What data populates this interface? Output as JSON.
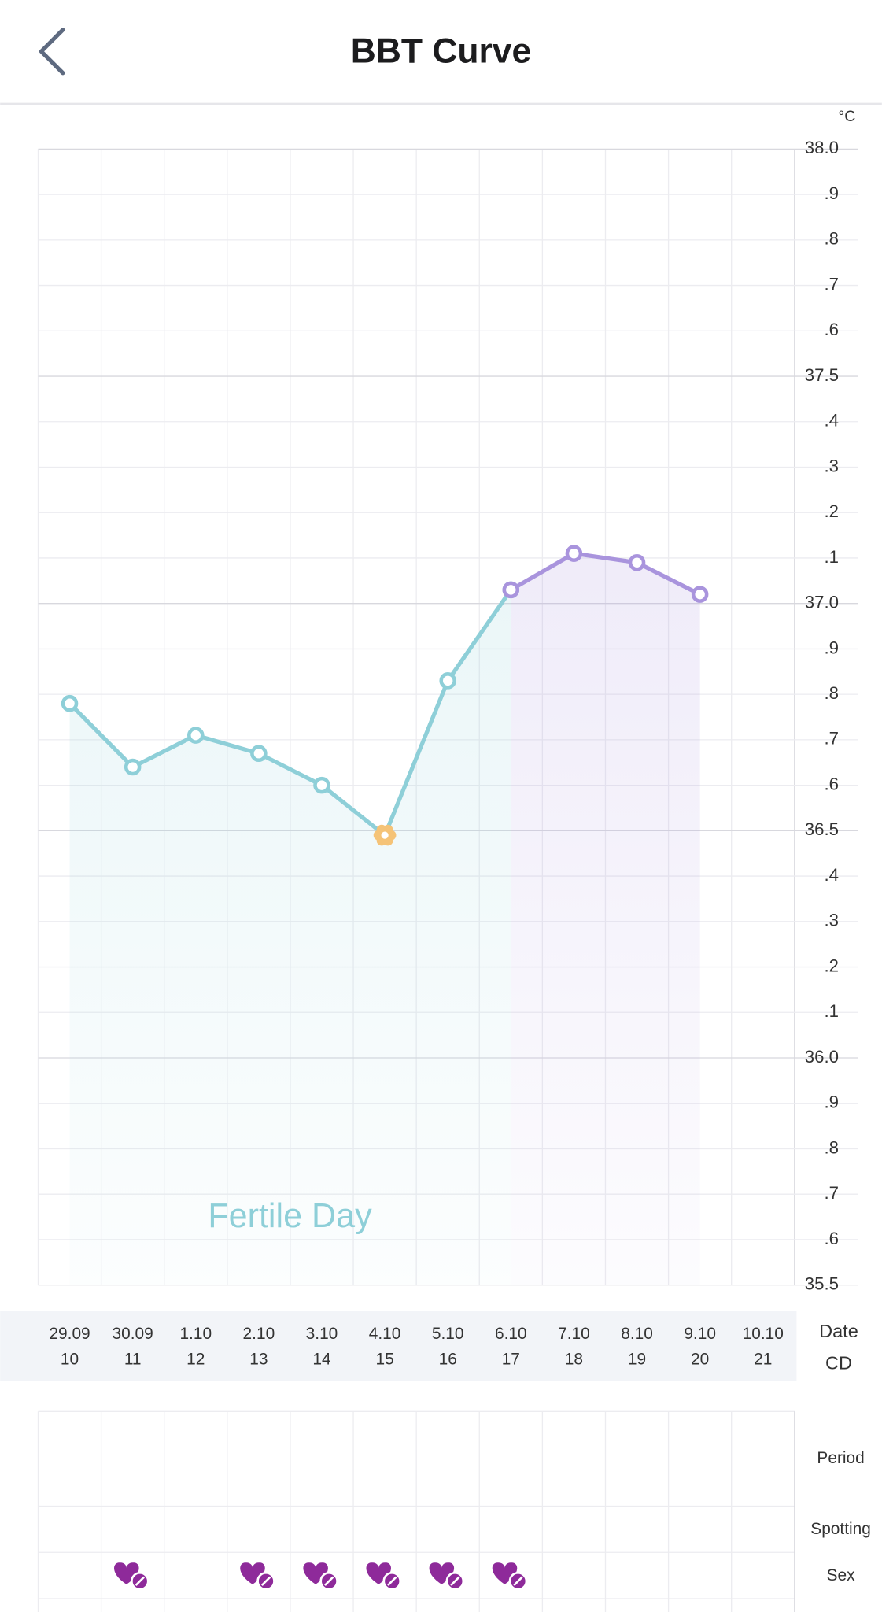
{
  "chart_data": {
    "type": "line",
    "title": "BBT Curve",
    "y_unit": "°C",
    "annotation": "Fertile Day",
    "date_label": "Date",
    "cd_label": "CD",
    "categories": [
      "29.09",
      "30.09",
      "1.10",
      "2.10",
      "3.10",
      "4.10",
      "5.10",
      "6.10",
      "7.10",
      "8.10",
      "9.10",
      "10.10"
    ],
    "cycle_days": [
      "10",
      "11",
      "12",
      "13",
      "14",
      "15",
      "16",
      "17",
      "18",
      "19",
      "20",
      "21"
    ],
    "series": [
      {
        "color": "#8ecfd8",
        "values": [
          36.78,
          36.64,
          36.71,
          36.67,
          36.6,
          36.49,
          36.83,
          37.03,
          null,
          null,
          null,
          null
        ],
        "fertile": [
          false,
          false,
          false,
          false,
          false,
          true,
          false,
          false,
          false,
          false,
          false,
          false
        ]
      },
      {
        "color": "#a994dd",
        "values": [
          null,
          null,
          null,
          null,
          null,
          null,
          null,
          37.03,
          37.11,
          37.09,
          37.02,
          null
        ]
      }
    ],
    "ylim": [
      35.5,
      38
    ],
    "yticks": [
      {
        "value": 38,
        "label": "38.0"
      },
      {
        "value": 37.9,
        "label": ".9"
      },
      {
        "value": 37.8,
        "label": ".8"
      },
      {
        "value": 37.7,
        "label": ".7"
      },
      {
        "value": 37.6,
        "label": ".6"
      },
      37.5,
      {
        "value": 37.4,
        "label": ".4"
      },
      {
        "value": 37.3,
        "label": ".3"
      },
      {
        "value": 37.2,
        "label": ".2"
      },
      {
        "value": 37.1,
        "label": ".1"
      },
      {
        "value": 37,
        "label": "37.0"
      },
      {
        "value": 36.9,
        "label": ".9"
      },
      {
        "value": 36.8,
        "label": ".8"
      },
      {
        "value": 36.7,
        "label": ".7"
      },
      {
        "value": 36.6,
        "label": ".6"
      },
      36.5,
      {
        "value": 36.4,
        "label": ".4"
      },
      {
        "value": 36.3,
        "label": ".3"
      },
      {
        "value": 36.2,
        "label": ".2"
      },
      {
        "value": 36.1,
        "label": ".1"
      },
      {
        "value": 36,
        "label": "36.0"
      },
      {
        "value": 35.9,
        "label": ".9"
      },
      {
        "value": 35.8,
        "label": ".8"
      },
      {
        "value": 35.7,
        "label": ".7"
      },
      {
        "value": 35.6,
        "label": ".6"
      },
      35.5
    ],
    "grid": true,
    "log_rows": [
      "Period",
      "Spotting",
      "Sex"
    ],
    "sex": [
      false,
      true,
      false,
      true,
      true,
      true,
      true,
      true,
      false,
      false,
      false,
      false
    ]
  }
}
